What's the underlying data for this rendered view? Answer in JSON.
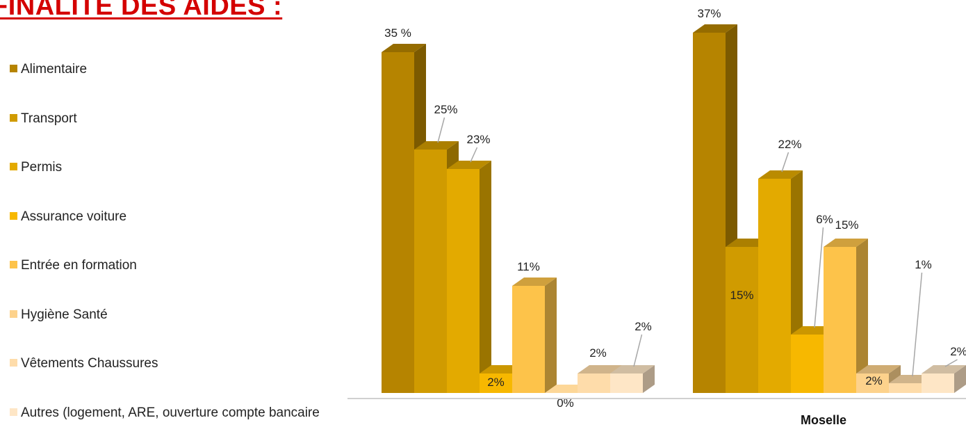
{
  "page": {
    "title": "FINALITÉ DES AIDES :"
  },
  "chart_data": {
    "type": "bar",
    "title": "FINALITÉ DES AIDES :",
    "categories": [
      "",
      "Moselle"
    ],
    "series": [
      {
        "name": "Alimentaire",
        "values": [
          35,
          37
        ],
        "labels": [
          "35 %",
          "37%"
        ],
        "color": "#b68400"
      },
      {
        "name": "Transport",
        "values": [
          25,
          15
        ],
        "labels": [
          "25%",
          "15%"
        ],
        "color": "#d09b00"
      },
      {
        "name": "Permis",
        "values": [
          23,
          22
        ],
        "labels": [
          "23%",
          "22%"
        ],
        "color": "#e3aa00"
      },
      {
        "name": "Assurance voiture",
        "values": [
          2,
          6
        ],
        "labels": [
          "2%",
          "6%"
        ],
        "color": "#f7b800"
      },
      {
        "name": "Entrée en formation",
        "values": [
          11,
          15
        ],
        "labels": [
          "11%",
          "15%"
        ],
        "color": "#fdc34a"
      },
      {
        "name": "Hygiène Santé",
        "values": [
          0,
          2
        ],
        "labels": [
          "0%",
          "2%"
        ],
        "color": "#fdd28c"
      },
      {
        "name": "Vêtements Chaussures",
        "values": [
          2,
          1
        ],
        "labels": [
          "2%",
          "1%"
        ],
        "color": "#fedcaa"
      },
      {
        "name": "Autres (logement, ARE, ouverture compte bancaire",
        "values": [
          2,
          2
        ],
        "labels": [
          "2%",
          "2%"
        ],
        "color": "#fee6c6"
      }
    ],
    "ylim": [
      0,
      37
    ],
    "legend_position": "left",
    "grid": false
  }
}
